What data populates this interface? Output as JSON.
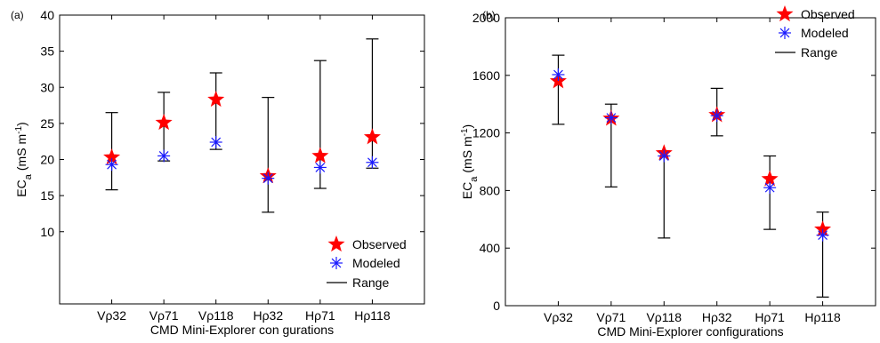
{
  "colors": {
    "observed": "#ff0000",
    "modeled": "#1a1aff",
    "range": "#000000"
  },
  "legend": {
    "observed": "Observed",
    "modeled": "Modeled",
    "range": "Range"
  },
  "chart_data": [
    {
      "type": "scatter",
      "panel_label": "(a)",
      "xlabel": "CMD Mini-Explorer con  gurations",
      "ylabel": "EC",
      "ylabel_sub": "a",
      "ylabel_unit": "(mS m",
      "ylabel_exp": "-1",
      "ylabel_close": ")",
      "ylim": [
        0,
        40
      ],
      "yticks": [
        10,
        15,
        20,
        25,
        30,
        35,
        40
      ],
      "legend_position": "bottom-right",
      "categories": [
        "Vρ32",
        "Vρ71",
        "Vρ118",
        "Hρ32",
        "Hρ71",
        "Hρ118"
      ],
      "series": [
        {
          "name": "Observed",
          "values": [
            20.3,
            25.1,
            28.3,
            17.7,
            20.5,
            23.1
          ]
        },
        {
          "name": "Modeled",
          "values": [
            19.3,
            20.5,
            22.4,
            17.4,
            18.9,
            19.6
          ]
        },
        {
          "name": "Range",
          "low": [
            15.8,
            19.8,
            21.4,
            12.7,
            16.0,
            18.8
          ],
          "high": [
            26.5,
            29.3,
            32.0,
            28.6,
            33.7,
            36.7
          ]
        }
      ]
    },
    {
      "type": "scatter",
      "panel_label": "(b)",
      "xlabel": "CMD Mini-Explorer configurations",
      "ylabel": "EC",
      "ylabel_sub": "a",
      "ylabel_unit": "(mS m",
      "ylabel_exp": "-1",
      "ylabel_close": ")",
      "ylim": [
        0,
        2000
      ],
      "yticks": [
        0,
        400,
        800,
        1200,
        1600,
        2000
      ],
      "legend_position": "top-right",
      "categories": [
        "Vρ32",
        "Vρ71",
        "Vρ118",
        "Hρ32",
        "Hρ71",
        "Hρ118"
      ],
      "series": [
        {
          "name": "Observed",
          "values": [
            1560,
            1300,
            1060,
            1325,
            880,
            530
          ]
        },
        {
          "name": "Modeled",
          "values": [
            1605,
            1305,
            1040,
            1320,
            820,
            490
          ]
        },
        {
          "name": "Range",
          "low": [
            1260,
            825,
            470,
            1180,
            530,
            60
          ],
          "high": [
            1740,
            1400,
            1075,
            1510,
            1040,
            650
          ]
        }
      ]
    }
  ]
}
